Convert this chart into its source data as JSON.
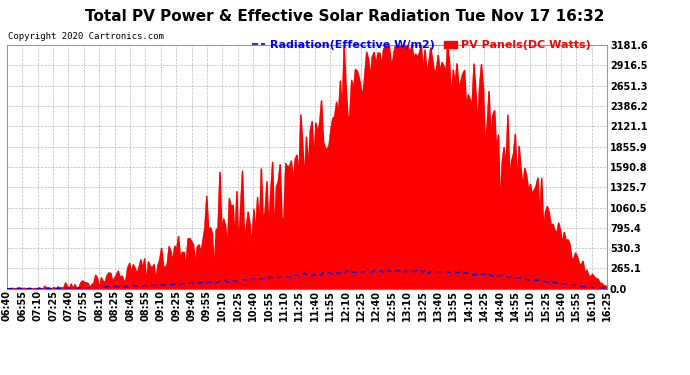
{
  "title": "Total PV Power & Effective Solar Radiation Tue Nov 17 16:32",
  "copyright": "Copyright 2020 Cartronics.com",
  "legend_radiation": "Radiation(Effective W/m2)",
  "legend_pv": "PV Panels(DC Watts)",
  "y_max": 3181.6,
  "y_ticks": [
    0.0,
    265.1,
    530.3,
    795.4,
    1060.5,
    1325.7,
    1590.8,
    1855.9,
    2121.1,
    2386.2,
    2651.3,
    2916.5,
    3181.6
  ],
  "outer_bg": "#ffffff",
  "plot_bg_color": "#ffffff",
  "fill_color": "#ff0000",
  "line_color": "#0000ff",
  "grid_color": "#aaaaaa",
  "title_fontsize": 11,
  "tick_fontsize": 7,
  "legend_fontsize": 8,
  "x_labels": [
    "06:40",
    "06:55",
    "07:10",
    "07:25",
    "07:40",
    "07:55",
    "08:10",
    "08:25",
    "08:40",
    "08:55",
    "09:10",
    "09:25",
    "09:40",
    "09:55",
    "10:10",
    "10:25",
    "10:40",
    "10:55",
    "11:10",
    "11:25",
    "11:40",
    "11:55",
    "12:10",
    "12:25",
    "12:40",
    "12:55",
    "13:10",
    "13:25",
    "13:40",
    "13:55",
    "14:10",
    "14:25",
    "14:40",
    "14:55",
    "15:10",
    "15:25",
    "15:40",
    "15:55",
    "16:10",
    "16:25"
  ],
  "pv_data": [
    5,
    8,
    12,
    20,
    35,
    80,
    120,
    160,
    220,
    280,
    350,
    490,
    620,
    710,
    820,
    900,
    1020,
    1160,
    1420,
    1700,
    1900,
    2100,
    2450,
    2820,
    3050,
    3100,
    3120,
    3050,
    2950,
    2820,
    2600,
    2320,
    2000,
    1700,
    1350,
    1020,
    700,
    380,
    150,
    30
  ],
  "pv_jitter": [
    0,
    5,
    8,
    12,
    20,
    30,
    50,
    40,
    60,
    50,
    80,
    120,
    150,
    180,
    200,
    180,
    200,
    220,
    250,
    200,
    180,
    160,
    200,
    150,
    100,
    80,
    60,
    80,
    100,
    120,
    150,
    180,
    200,
    150,
    120,
    100,
    80,
    60,
    30,
    5
  ],
  "rad_data": [
    2,
    3,
    4,
    5,
    8,
    12,
    18,
    24,
    30,
    38,
    48,
    58,
    68,
    80,
    95,
    110,
    125,
    140,
    155,
    170,
    185,
    200,
    215,
    225,
    230,
    235,
    235,
    230,
    225,
    215,
    200,
    185,
    165,
    145,
    120,
    95,
    68,
    40,
    18,
    5
  ],
  "rad_jitter": [
    0,
    1,
    1,
    2,
    2,
    3,
    4,
    4,
    5,
    5,
    6,
    7,
    8,
    9,
    10,
    10,
    11,
    12,
    12,
    13,
    13,
    14,
    14,
    14,
    14,
    14,
    14,
    13,
    13,
    12,
    12,
    11,
    10,
    9,
    8,
    7,
    6,
    4,
    3,
    1
  ]
}
